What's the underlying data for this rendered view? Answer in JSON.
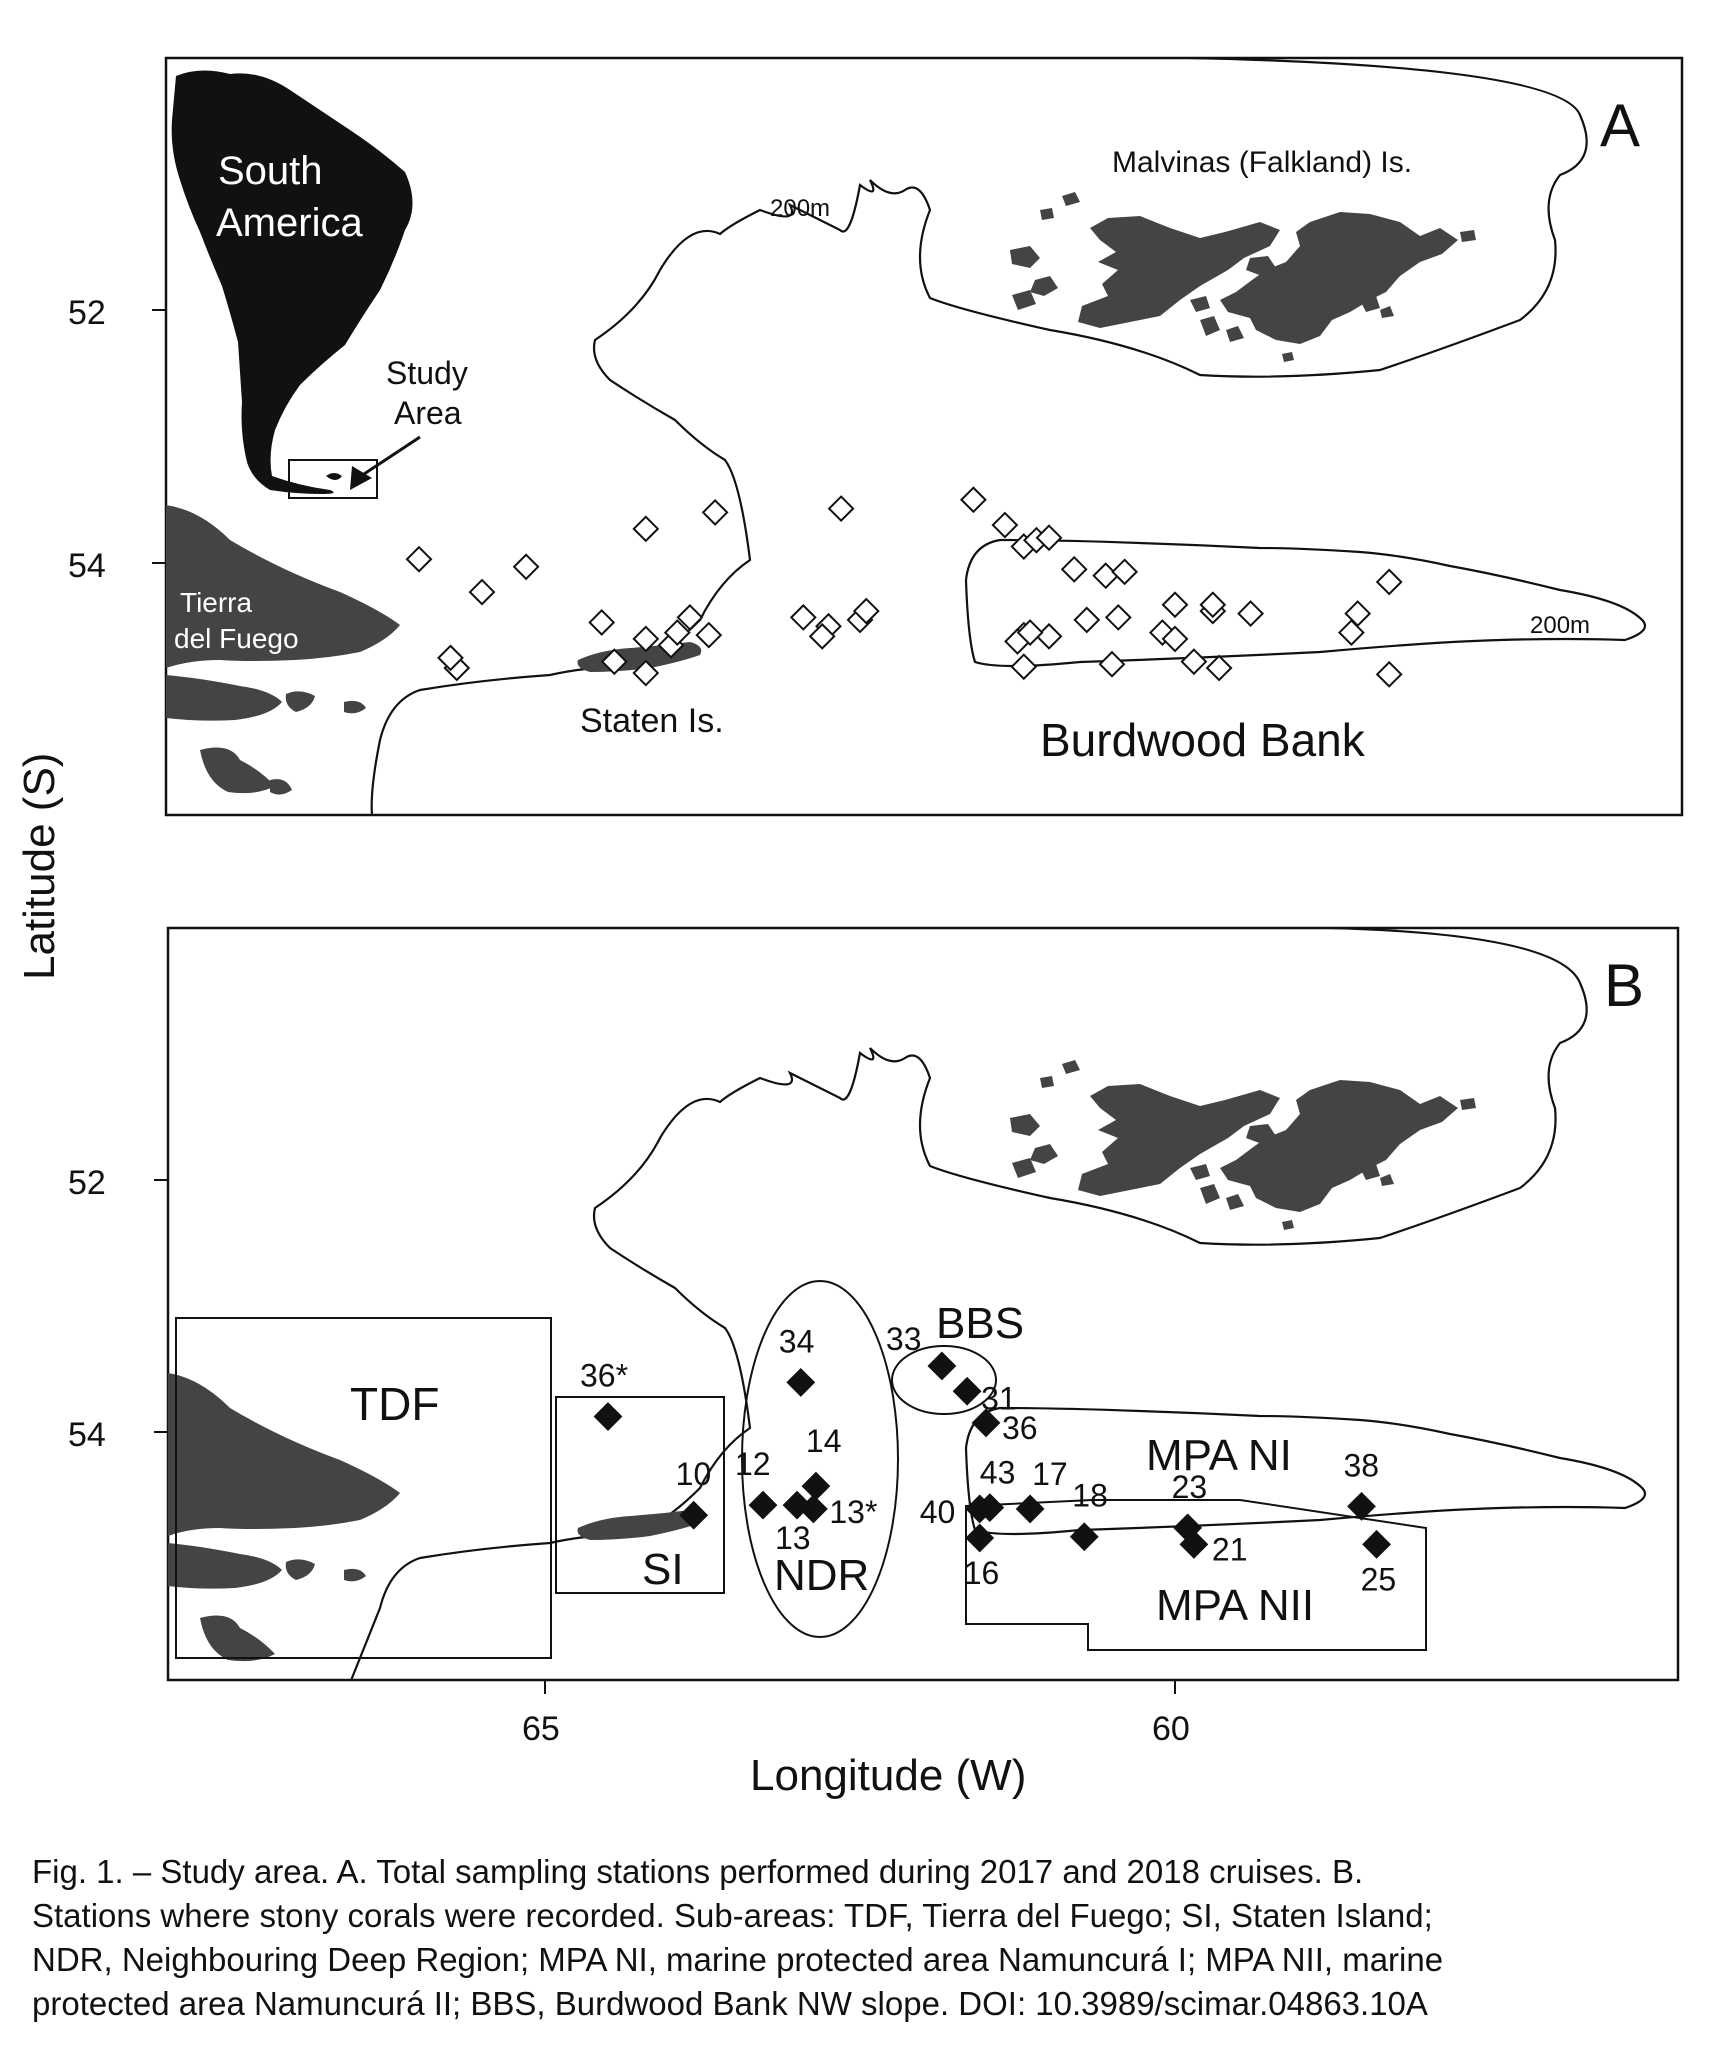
{
  "figure": {
    "y_axis_label": "Latitude (S)",
    "x_axis_label": "Longitude (W)",
    "x_ticks": [
      "65",
      "60"
    ],
    "y_ticks": [
      "52",
      "54"
    ]
  },
  "panel_a": {
    "panel_letter": "A",
    "inset_labels": [
      "South",
      "America"
    ],
    "inset_callout": [
      "Study",
      "Area"
    ],
    "labels": {
      "tierra_del_fuego": [
        "Tierra",
        "del Fuego"
      ],
      "staten": "Staten Is.",
      "burdwood": "Burdwood Bank",
      "malvinas": "Malvinas (Falkland) Is.",
      "isobath_north": "200m",
      "isobath_east": "200m"
    },
    "stations": [
      {
        "lon": 66.0,
        "lat": 53.97
      },
      {
        "lon": 65.5,
        "lat": 54.23
      },
      {
        "lon": 64.2,
        "lat": 53.73
      },
      {
        "lon": 63.65,
        "lat": 53.6
      },
      {
        "lon": 62.65,
        "lat": 53.57
      },
      {
        "lon": 61.6,
        "lat": 53.5
      },
      {
        "lon": 61.35,
        "lat": 53.7
      },
      {
        "lon": 61.2,
        "lat": 53.87
      },
      {
        "lon": 61.1,
        "lat": 53.82
      },
      {
        "lon": 61.0,
        "lat": 53.8
      },
      {
        "lon": 60.8,
        "lat": 54.05
      },
      {
        "lon": 60.55,
        "lat": 54.1
      },
      {
        "lon": 60.4,
        "lat": 54.07
      },
      {
        "lon": 60.0,
        "lat": 54.33
      },
      {
        "lon": 59.7,
        "lat": 54.38
      },
      {
        "lon": 59.4,
        "lat": 54.4
      },
      {
        "lon": 58.55,
        "lat": 54.4
      },
      {
        "lon": 58.3,
        "lat": 54.15
      },
      {
        "lon": 59.7,
        "lat": 54.33
      },
      {
        "lon": 60.45,
        "lat": 54.43
      },
      {
        "lon": 60.7,
        "lat": 54.45
      },
      {
        "lon": 61.0,
        "lat": 54.58
      },
      {
        "lon": 61.2,
        "lat": 54.57
      },
      {
        "lon": 61.25,
        "lat": 54.62
      },
      {
        "lon": 61.15,
        "lat": 54.55
      },
      {
        "lon": 61.2,
        "lat": 54.82
      },
      {
        "lon": 60.1,
        "lat": 54.55
      },
      {
        "lon": 60.0,
        "lat": 54.6
      },
      {
        "lon": 59.65,
        "lat": 54.83
      },
      {
        "lon": 59.85,
        "lat": 54.78
      },
      {
        "lon": 60.5,
        "lat": 54.8
      },
      {
        "lon": 58.6,
        "lat": 54.55
      },
      {
        "lon": 58.3,
        "lat": 54.88
      },
      {
        "lon": 62.95,
        "lat": 54.43
      },
      {
        "lon": 62.75,
        "lat": 54.5
      },
      {
        "lon": 62.5,
        "lat": 54.45
      },
      {
        "lon": 62.45,
        "lat": 54.38
      },
      {
        "lon": 62.8,
        "lat": 54.58
      },
      {
        "lon": 63.7,
        "lat": 54.57
      },
      {
        "lon": 64.0,
        "lat": 54.65
      },
      {
        "lon": 64.2,
        "lat": 54.87
      },
      {
        "lon": 64.2,
        "lat": 54.6
      },
      {
        "lon": 65.7,
        "lat": 54.83
      },
      {
        "lon": 65.15,
        "lat": 54.03
      },
      {
        "lon": 64.55,
        "lat": 54.47
      },
      {
        "lon": 63.95,
        "lat": 54.55
      },
      {
        "lon": 63.85,
        "lat": 54.43
      },
      {
        "lon": 65.75,
        "lat": 54.75
      },
      {
        "lon": 64.45,
        "lat": 54.78
      }
    ]
  },
  "panel_b": {
    "panel_letter": "B",
    "subareas": {
      "tdf": "TDF",
      "si": "SI",
      "ndr": "NDR",
      "bbs": "BBS",
      "mpa_ni": "MPA NI",
      "mpa_nii": "MPA NII"
    },
    "stations": [
      {
        "id": "36*",
        "lon": 64.5,
        "lat": 53.87
      },
      {
        "id": "10",
        "lon": 63.82,
        "lat": 54.65
      },
      {
        "id": "12",
        "lon": 63.27,
        "lat": 54.57
      },
      {
        "id": "13",
        "lon": 63.0,
        "lat": 54.57
      },
      {
        "id": "14",
        "lon": 62.85,
        "lat": 54.42
      },
      {
        "id": "13*",
        "lon": 62.87,
        "lat": 54.6
      },
      {
        "id": "34",
        "lon": 62.97,
        "lat": 53.6
      },
      {
        "id": "33",
        "lon": 61.85,
        "lat": 53.47
      },
      {
        "id": "31",
        "lon": 61.65,
        "lat": 53.67
      },
      {
        "id": "36",
        "lon": 61.5,
        "lat": 53.92
      },
      {
        "id": "43",
        "lon": 61.47,
        "lat": 54.59
      },
      {
        "id": "40",
        "lon": 61.55,
        "lat": 54.6
      },
      {
        "id": "17",
        "lon": 61.15,
        "lat": 54.6
      },
      {
        "id": "16",
        "lon": 61.55,
        "lat": 54.83
      },
      {
        "id": "18",
        "lon": 60.72,
        "lat": 54.82
      },
      {
        "id": "23",
        "lon": 59.9,
        "lat": 54.75
      },
      {
        "id": "21",
        "lon": 59.85,
        "lat": 54.88
      },
      {
        "id": "38",
        "lon": 58.52,
        "lat": 54.58
      },
      {
        "id": "25",
        "lon": 58.4,
        "lat": 54.88
      }
    ]
  },
  "caption": [
    "Fig. 1. – Study area. A. Total sampling stations performed during 2017 and 2018 cruises. B.",
    "Stations where stony corals were recorded. Sub-areas: TDF, Tierra del Fuego; SI, Staten Island;",
    "NDR, Neighbouring Deep Region; MPA NI, marine protected area Namuncurá I; MPA NII, marine",
    "protected area Namuncurá II; BBS, Burdwood Bank NW slope. DOI: 10.3989/scimar.04863.10A"
  ]
}
